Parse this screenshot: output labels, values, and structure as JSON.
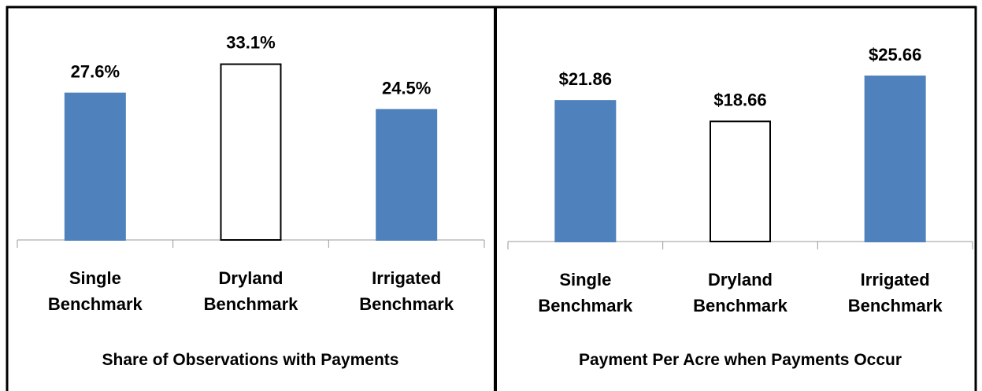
{
  "chart_data": [
    {
      "type": "bar",
      "title": "Share of Observations with Payments",
      "categories": [
        "Single Benchmark",
        "Dryland Benchmark",
        "Irrigated Benchmark"
      ],
      "values": [
        27.6,
        33.1,
        24.5
      ],
      "value_labels": [
        "27.6%",
        "33.1%",
        "24.5%"
      ],
      "colors": [
        "#4f81bd",
        "#ffffff",
        "#4f81bd"
      ],
      "edgecolors": [
        "#4f81bd",
        "#000000",
        "#4f81bd"
      ],
      "ylim": [
        0,
        40
      ]
    },
    {
      "type": "bar",
      "title": "Payment Per Acre when Payments Occur",
      "categories": [
        "Single Benchmark",
        "Dryland Benchmark",
        "Irrigated Benchmark"
      ],
      "values": [
        21.86,
        18.66,
        25.66
      ],
      "value_labels": [
        "$21.86",
        "$18.66",
        "$25.66"
      ],
      "colors": [
        "#4f81bd",
        "#ffffff",
        "#4f81bd"
      ],
      "edgecolors": [
        "#4f81bd",
        "#000000",
        "#4f81bd"
      ],
      "ylim": [
        0,
        33
      ]
    }
  ]
}
